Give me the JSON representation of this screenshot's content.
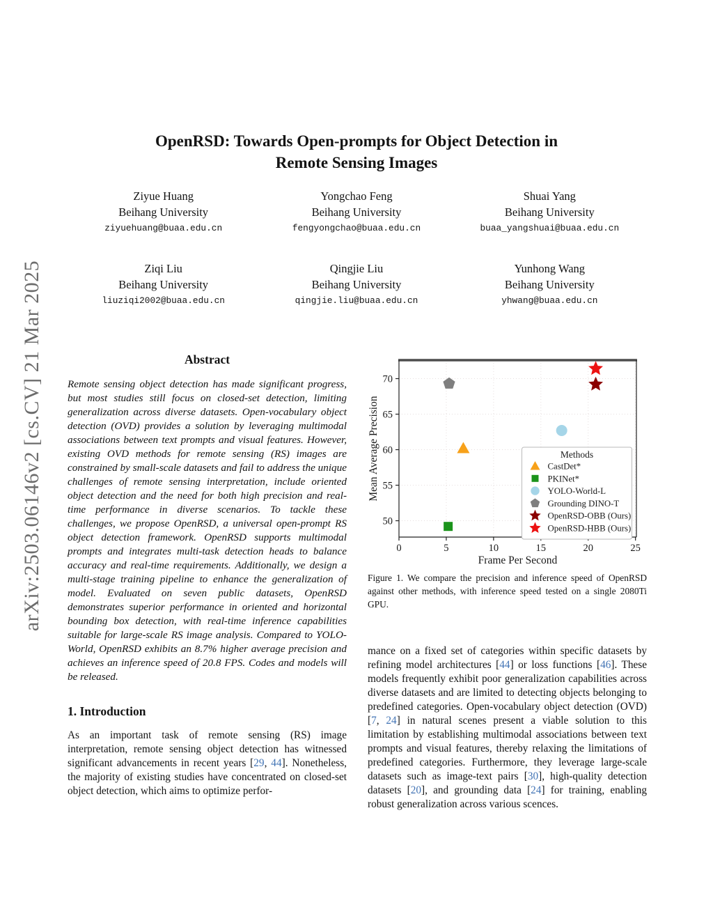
{
  "watermark": "arXiv:2503.06146v2  [cs.CV]  21 Mar 2025",
  "header": {
    "title_line1": "OpenRSD: Towards Open-prompts for Object Detection in",
    "title_line2": "Remote Sensing Images"
  },
  "authors": [
    {
      "name": "Ziyue Huang",
      "affiliation": "Beihang University",
      "email": "ziyuehuang@buaa.edu.cn"
    },
    {
      "name": "Yongchao Feng",
      "affiliation": "Beihang University",
      "email": "fengyongchao@buaa.edu.cn"
    },
    {
      "name": "Shuai Yang",
      "affiliation": "Beihang University",
      "email": "buaa_yangshuai@buaa.edu.cn"
    },
    {
      "name": "Ziqi Liu",
      "affiliation": "Beihang University",
      "email": "liuziqi2002@buaa.edu.cn"
    },
    {
      "name": "Qingjie Liu",
      "affiliation": "Beihang University",
      "email": "qingjie.liu@buaa.edu.cn"
    },
    {
      "name": "Yunhong Wang",
      "affiliation": "Beihang University",
      "email": "yhwang@buaa.edu.cn"
    }
  ],
  "abstract": {
    "heading": "Abstract",
    "text": "Remote sensing object detection has made significant progress, but most studies still focus on closed-set detection, limiting generalization across diverse datasets. Open-vocabulary object detection (OVD) provides a solution by leveraging multimodal associations between text prompts and visual features. However, existing OVD methods for remote sensing (RS) images are constrained by small-scale datasets and fail to address the unique challenges of remote sensing interpretation, include oriented object detection and the need for both high precision and real-time performance in diverse scenarios. To tackle these challenges, we propose OpenRSD, a universal open-prompt RS object detection framework. OpenRSD supports multimodal prompts and integrates multi-task detection heads to balance accuracy and real-time requirements. Additionally, we design a multi-stage training pipeline to enhance the generalization of model. Evaluated on seven public datasets, OpenRSD demonstrates superior performance in oriented and horizontal bounding box detection, with real-time inference capabilities suitable for large-scale RS image analysis. Compared to YOLO-World, OpenRSD exhibits an 8.7% higher average precision and achieves an inference speed of 20.8 FPS. Codes and models will be released."
  },
  "sections": {
    "intro_heading": "1. Introduction",
    "intro_segments": [
      {
        "t": "As an important task of remote sensing (RS) image interpretation, remote sensing object detection has witnessed significant advancements in recent years ["
      },
      {
        "t": "29",
        "ref": true
      },
      {
        "t": ", "
      },
      {
        "t": "44",
        "ref": true
      },
      {
        "t": "]. Nonetheless, the majority of existing studies have concentrated on closed-set object detection, which aims to optimize perfor-"
      }
    ]
  },
  "right_column": {
    "para_segments": [
      {
        "t": "mance on a fixed set of categories within specific datasets by refining model architectures ["
      },
      {
        "t": "44",
        "ref": true
      },
      {
        "t": "] or loss functions ["
      },
      {
        "t": "46",
        "ref": true
      },
      {
        "t": "]. These models frequently exhibit poor generalization capabilities across diverse datasets and are limited to detecting objects belonging to predefined categories. Open-vocabulary object detection (OVD) ["
      },
      {
        "t": "7",
        "ref": true
      },
      {
        "t": ", "
      },
      {
        "t": "24",
        "ref": true
      },
      {
        "t": "] in natural scenes present a viable solution to this limitation by establishing multimodal associations between text prompts and visual features, thereby relaxing the limitations of predefined categories. Furthermore, they leverage large-scale datasets such as image-text pairs ["
      },
      {
        "t": "30",
        "ref": true
      },
      {
        "t": "], high-quality detection datasets ["
      },
      {
        "t": "20",
        "ref": true
      },
      {
        "t": "], and grounding data ["
      },
      {
        "t": "24",
        "ref": true
      },
      {
        "t": "] for training, enabling robust generalization across various scences."
      }
    ]
  },
  "figure": {
    "caption": "Figure 1.  We compare the precision and inference speed of OpenRSD against other methods, with inference speed tested on a single 2080Ti GPU."
  },
  "chart_data": {
    "type": "scatter",
    "xlabel": "Frame Per Second",
    "ylabel": "Mean Average Precision",
    "xlim": [
      0,
      25.1
    ],
    "ylim": [
      47.7,
      72.6
    ],
    "xticks": [
      0,
      5,
      10,
      15,
      20,
      25
    ],
    "yticks": [
      50,
      55,
      60,
      65,
      70
    ],
    "grid": true,
    "legend_title": "Methods",
    "legend_position": "lower right",
    "series": [
      {
        "name": "CastDet*",
        "marker": "triangle",
        "color": "#F7A11A",
        "x": 6.8,
        "y": 60.2
      },
      {
        "name": "PKINet*",
        "marker": "square",
        "color": "#1B931B",
        "x": 5.2,
        "y": 49.2
      },
      {
        "name": "YOLO-World-L",
        "marker": "circle",
        "color": "#A5D5E8",
        "x": 17.2,
        "y": 62.7
      },
      {
        "name": "Grounding DINO-T",
        "marker": "pentagon",
        "color": "#7F7F7F",
        "x": 5.3,
        "y": 69.3
      },
      {
        "name": "OpenRSD-OBB (Ours)",
        "marker": "star",
        "color": "#8B0000",
        "x": 20.8,
        "y": 69.2
      },
      {
        "name": "OpenRSD-HBB (Ours)",
        "marker": "star",
        "color": "#EC1212",
        "x": 20.8,
        "y": 71.4
      }
    ]
  }
}
